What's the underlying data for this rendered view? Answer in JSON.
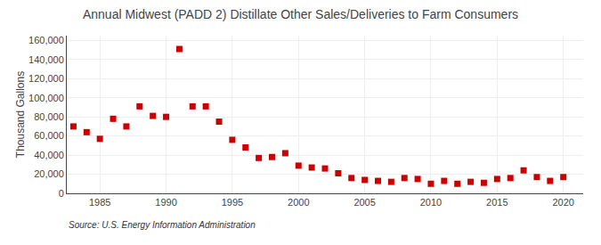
{
  "chart_data": {
    "type": "scatter",
    "title": "Annual Midwest (PADD 2) Distillate Other Sales/Deliveries to Farm Consumers",
    "ylabel": "Thousand Gallons",
    "annotations": [
      "Source: U.S. Energy Information Administration"
    ],
    "x": [
      1983,
      1984,
      1985,
      1986,
      1987,
      1988,
      1989,
      1990,
      1991,
      1992,
      1993,
      1994,
      1995,
      1996,
      1997,
      1998,
      1999,
      2000,
      2001,
      2002,
      2003,
      2004,
      2005,
      2006,
      2007,
      2008,
      2009,
      2010,
      2011,
      2012,
      2013,
      2014,
      2015,
      2016,
      2017,
      2018,
      2019,
      2020
    ],
    "values": [
      70000,
      64000,
      57000,
      78000,
      70000,
      91000,
      81000,
      80000,
      151000,
      91000,
      91000,
      75000,
      56000,
      48000,
      37000,
      38000,
      42000,
      29000,
      27000,
      26000,
      21000,
      16000,
      14000,
      13000,
      12000,
      16000,
      15000,
      10000,
      13000,
      10000,
      12000,
      11000,
      15000,
      16000,
      24000,
      17000,
      13000,
      17000
    ],
    "color": "#cc0000",
    "marker": "square",
    "xlim": [
      1982.5,
      2021.5
    ],
    "ylim": [
      0,
      165000
    ],
    "xticks": [
      1985,
      1990,
      1995,
      2000,
      2005,
      2010,
      2015,
      2020
    ],
    "yticks": [
      0,
      {
        "value": 20000,
        "label": "20,000"
      },
      {
        "value": 40000,
        "label": "40,000"
      },
      {
        "value": 60000,
        "label": "60,000"
      },
      {
        "value": 80000,
        "label": "80,000"
      },
      {
        "value": 100000,
        "label": "100,000"
      },
      {
        "value": 120000,
        "label": "120,000"
      },
      {
        "value": 140000,
        "label": "140,000"
      },
      {
        "value": 160000,
        "label": "160,000"
      }
    ],
    "grid": true
  }
}
